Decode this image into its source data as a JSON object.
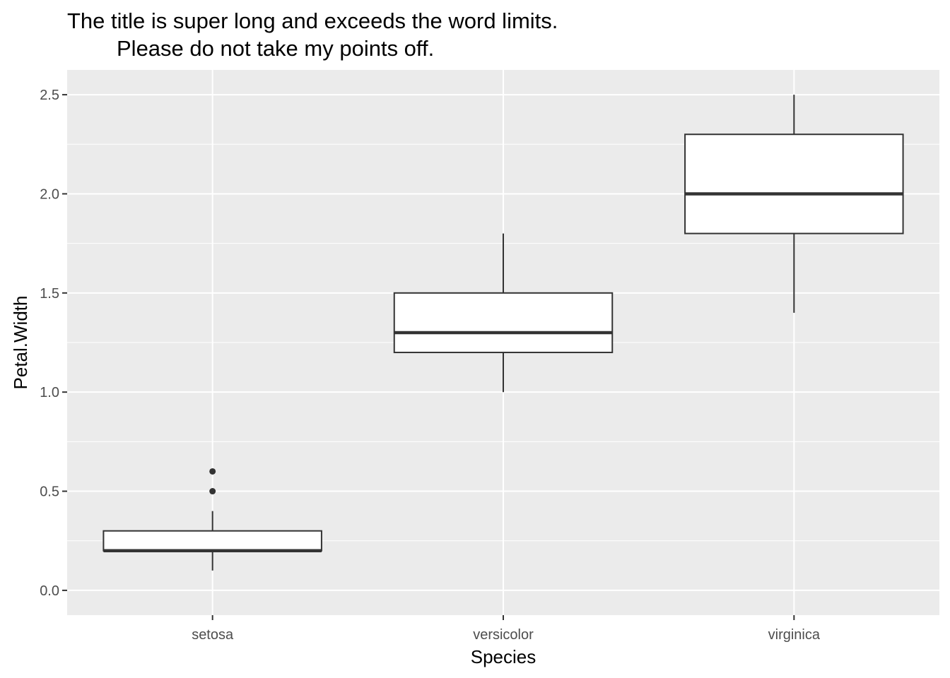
{
  "chart_data": {
    "type": "boxplot",
    "title_lines": [
      "The title is super long and exceeds the word limits.",
      "Please do not take my points off."
    ],
    "xlabel": "Species",
    "ylabel": "Petal.Width",
    "ylim": [
      -0.125,
      2.625
    ],
    "y_ticks": [
      0.0,
      0.5,
      1.0,
      1.5,
      2.0,
      2.5
    ],
    "y_tick_labels": [
      "0.0",
      "0.5",
      "1.0",
      "1.5",
      "2.0",
      "2.5"
    ],
    "categories": [
      "setosa",
      "versicolor",
      "virginica"
    ],
    "boxes": [
      {
        "category": "setosa",
        "whisker_low": 0.1,
        "q1": 0.2,
        "median": 0.2,
        "q3": 0.3,
        "whisker_high": 0.4,
        "outliers": [
          0.5,
          0.6
        ]
      },
      {
        "category": "versicolor",
        "whisker_low": 1.0,
        "q1": 1.2,
        "median": 1.3,
        "q3": 1.5,
        "whisker_high": 1.8,
        "outliers": []
      },
      {
        "category": "virginica",
        "whisker_low": 1.4,
        "q1": 1.8,
        "median": 2.0,
        "q3": 2.3,
        "whisker_high": 2.5,
        "outliers": []
      }
    ],
    "grid": true,
    "colors": {
      "panel": "#ebebeb",
      "grid": "#ffffff",
      "box_fill": "#ffffff",
      "box_line": "#333333"
    }
  }
}
